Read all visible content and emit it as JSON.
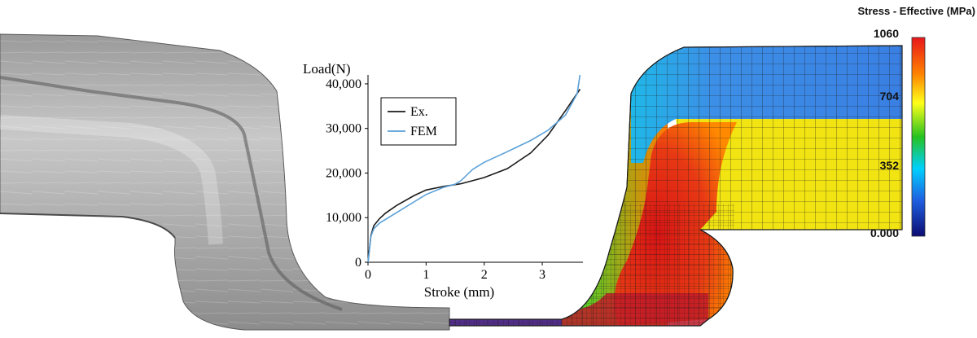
{
  "colorbar": {
    "title": "Stress - Effective (MPa)",
    "ticks": [
      "1060",
      "704",
      "352",
      "0.000"
    ],
    "colors": [
      "#e41a1c",
      "#ff7f00",
      "#ffff33",
      "#4daf4a",
      "#00c8ff",
      "#1f4fd8",
      "#0b0b7a"
    ]
  },
  "chart_data": {
    "type": "line",
    "xlabel": "Stroke (mm)",
    "ylabel": "Load(N)",
    "xlim": [
      0,
      3.7
    ],
    "ylim": [
      0,
      42000
    ],
    "x_ticks": [
      "0",
      "1",
      "2",
      "3"
    ],
    "y_ticks": [
      "0",
      "10,000",
      "20,000",
      "30,000",
      "40,000"
    ],
    "legend_position": "top-left",
    "series": [
      {
        "name": "Ex.",
        "color": "#1a1a1a",
        "x": [
          0,
          0.05,
          0.1,
          0.2,
          0.3,
          0.5,
          0.8,
          1.0,
          1.3,
          1.6,
          2.0,
          2.4,
          2.8,
          3.1,
          3.4,
          3.65
        ],
        "y": [
          0,
          6000,
          8200,
          9800,
          11000,
          12800,
          15000,
          16200,
          17000,
          17600,
          19000,
          21000,
          24500,
          28500,
          34000,
          38800
        ]
      },
      {
        "name": "FEM",
        "color": "#5aa0d8",
        "x": [
          0,
          0.05,
          0.1,
          0.2,
          0.3,
          0.5,
          0.8,
          1.0,
          1.3,
          1.5,
          1.6,
          1.8,
          2.0,
          2.4,
          2.8,
          3.1,
          3.4,
          3.6,
          3.65
        ],
        "y": [
          0,
          5800,
          7500,
          8800,
          9600,
          11200,
          13600,
          15200,
          16800,
          17500,
          18300,
          20800,
          22400,
          24800,
          27300,
          29600,
          33000,
          37800,
          42000
        ]
      }
    ]
  }
}
